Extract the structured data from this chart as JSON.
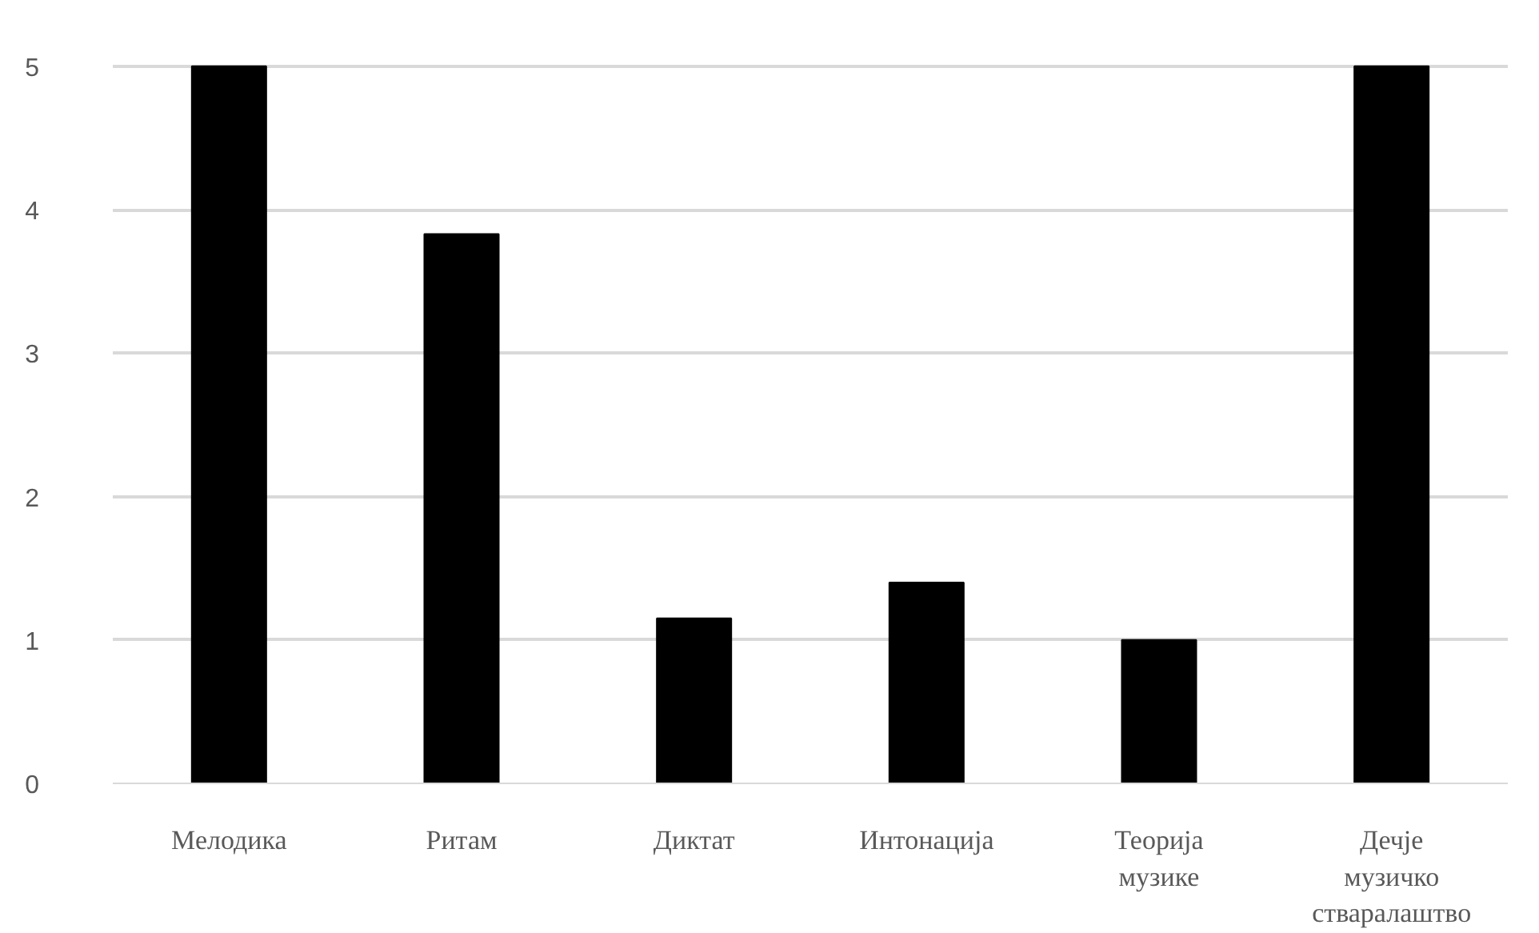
{
  "chart_data": {
    "type": "bar",
    "categories": [
      "Мелодика",
      "Ритам",
      "Диктат",
      "Интонација",
      "Теорија музике",
      "Дечје музичко стваралаштво"
    ],
    "values": [
      5,
      3.83,
      1.15,
      1.4,
      1.0,
      5
    ],
    "color": "#000000",
    "ylim": [
      0,
      5
    ],
    "yticks": [
      0,
      1,
      2,
      3,
      4,
      5
    ],
    "grid": "y"
  }
}
